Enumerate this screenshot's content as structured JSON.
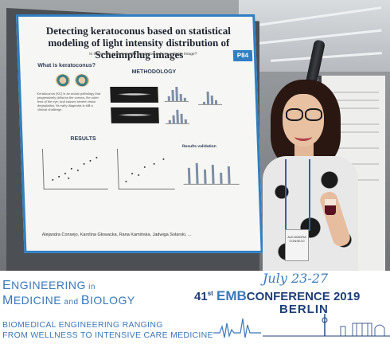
{
  "poster": {
    "title": "Detecting keratoconus based on statistical modeling of light intensity distribution of Scheimpflug images",
    "subtitle": "Is it possible to detect mild keratoconus from a single image?",
    "id_label": "P84",
    "section_what": "What is keratoconus?",
    "section_methodology": "METHODOLOGY",
    "section_results": "RESULTS",
    "section_validation": "Results validation",
    "kc_text": "Keratoconus (KC) is an ocular pathology that progressively deforms the cornea, the outer lens of the eye, and causes severe vision degradation. Its early diagnosis is still a clinical challenge.",
    "authors": "Alejandra Consejo, Karolina Głowacka, Rana Kamińska, Jadwiga Solarski, ..."
  },
  "badge_text": "ALEJANDRA CONSEJO",
  "banner": {
    "line1a": "E",
    "line1b": "NGINEERING",
    "line1c": " in",
    "line2a": "M",
    "line2b": "EDICINE",
    "line2c": " and ",
    "line2d": "B",
    "line2e": "IOLOGY",
    "tagline1": "BIOMEDICAL ENGINEERING RANGING",
    "tagline2": "FROM WELLNESS TO INTENSIVE CARE MEDICINE",
    "conf_prefix": "41",
    "conf_st": "st",
    "conf_emb": "EMB",
    "conf_word": "CONFERENCE",
    "conf_year": " 2019",
    "dates": "July 23-27",
    "city": "BERLIN"
  },
  "colors": {
    "brand_blue": "#3a78b8",
    "brand_navy": "#1f3f7a",
    "poster_border": "#2f7fc2"
  }
}
